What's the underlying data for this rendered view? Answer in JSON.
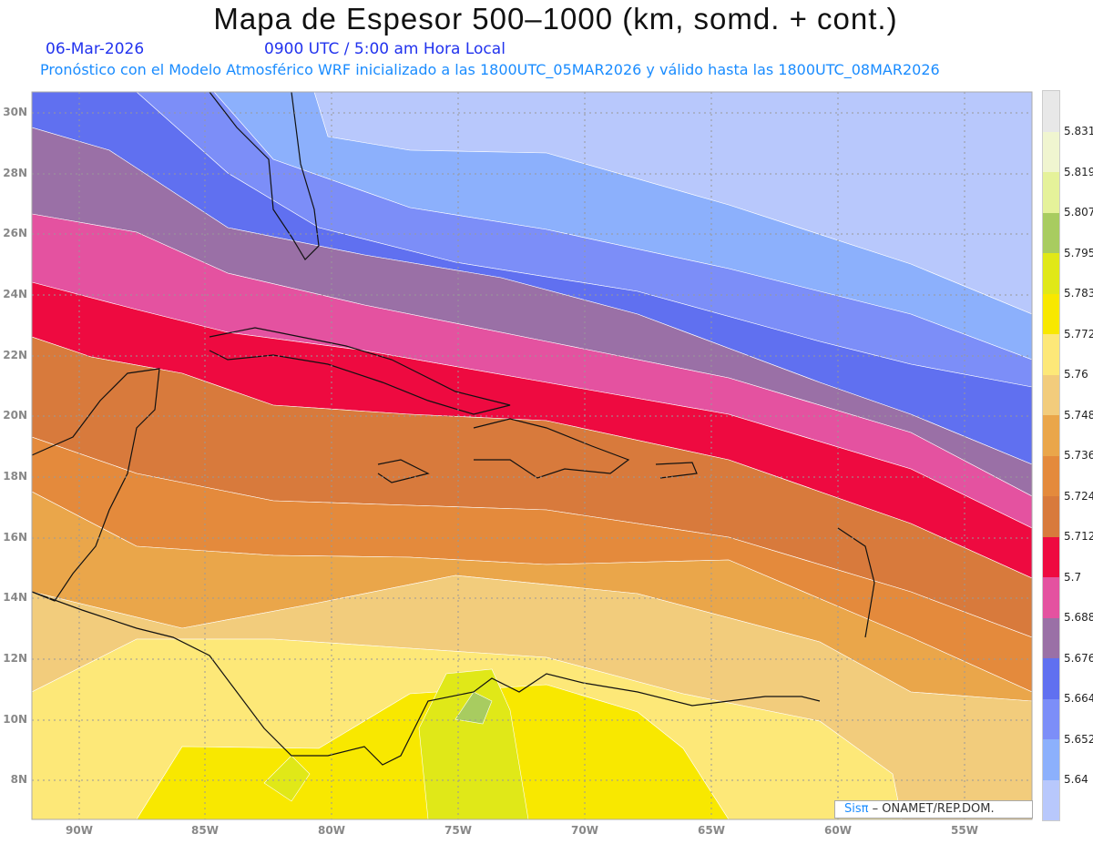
{
  "header": {
    "title": "Mapa de Espesor 500–1000 (km, somd. + cont.)",
    "date": "06-Mar-2026",
    "time": "0900 UTC / 5:00 am Hora Local",
    "subtitle": "Pronóstico con el Modelo Atmosférico WRF inicializado a las 1800UTC_05MAR2026 y válido hasta las  1800UTC_08MAR2026"
  },
  "axes": {
    "lat_labels": [
      "30N",
      "28N",
      "26N",
      "24N",
      "22N",
      "20N",
      "18N",
      "16N",
      "14N",
      "12N",
      "10N",
      "8N"
    ],
    "lon_labels": [
      "90W",
      "85W",
      "80W",
      "75W",
      "70W",
      "65W",
      "60W",
      "55W"
    ]
  },
  "legend": {
    "labels": [
      "5.831",
      "5.819",
      "5.807",
      "5.795",
      "5.783",
      "5.772",
      "5.76",
      "5.748",
      "5.736",
      "5.724",
      "5.712",
      "5.7",
      "5.688",
      "5.676",
      "5.664",
      "5.652",
      "5.64"
    ],
    "colors": [
      "#e8e8e8",
      "#f0f5d0",
      "#e5f29a",
      "#a8cc60",
      "#e0e818",
      "#f8e800",
      "#fde878",
      "#f2cc7c",
      "#eaa64a",
      "#e48a3c",
      "#d87a3c",
      "#ee0a40",
      "#e452a0",
      "#9a70a6",
      "#6070f0",
      "#7c8ef8",
      "#8cb0fc",
      "#b8c8fc"
    ]
  },
  "credit": {
    "brand": "Sisπ",
    "text": " –  ONAMET/REP.DOM."
  }
}
